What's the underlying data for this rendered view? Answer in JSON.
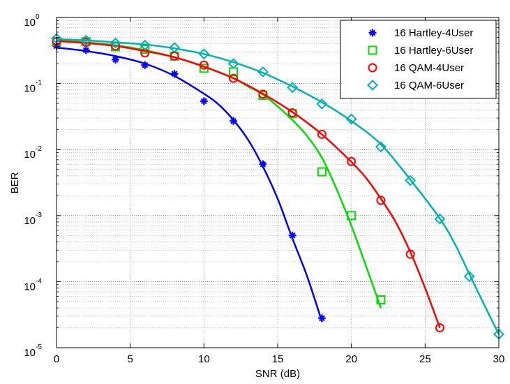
{
  "chart_data": {
    "type": "line",
    "xlabel": "SNR (dB)",
    "ylabel": "BER",
    "xlim": [
      0,
      30
    ],
    "ylim": [
      1e-05,
      1
    ],
    "yscale": "log",
    "grid": true,
    "legend_position": "top-right",
    "x_ticks": [
      0,
      5,
      10,
      15,
      20,
      25,
      30
    ],
    "y_ticks": [
      {
        "value": 1,
        "base": "10",
        "exp": "0"
      },
      {
        "value": 0.1,
        "base": "10",
        "exp": "-1"
      },
      {
        "value": 0.01,
        "base": "10",
        "exp": "-2"
      },
      {
        "value": 0.001,
        "base": "10",
        "exp": "-3"
      },
      {
        "value": 0.0001,
        "base": "10",
        "exp": "-4"
      },
      {
        "value": 1e-05,
        "base": "10",
        "exp": "-5"
      }
    ],
    "series": [
      {
        "name": "16 Hartley-4User",
        "color": "#0000ff",
        "marker": "star",
        "x": [
          0,
          2,
          4,
          6,
          8,
          10,
          12,
          14,
          16,
          18
        ],
        "y": [
          0.37,
          0.32,
          0.23,
          0.19,
          0.14,
          0.054,
          0.027,
          0.006,
          0.0005,
          2.8e-05
        ],
        "curve_x": [
          0,
          2,
          4,
          6,
          8,
          10,
          11,
          12,
          13,
          14,
          15,
          16,
          17,
          18
        ],
        "curve_y": [
          0.35,
          0.31,
          0.26,
          0.2,
          0.13,
          0.07,
          0.048,
          0.028,
          0.014,
          0.0055,
          0.0018,
          0.00045,
          0.00012,
          2.5e-05
        ]
      },
      {
        "name": "16 Hartley-6User",
        "color": "#00dd00",
        "marker": "square",
        "x": [
          0,
          2,
          4,
          6,
          8,
          10,
          12,
          14,
          16,
          18,
          20,
          22
        ],
        "y": [
          0.43,
          0.43,
          0.36,
          0.33,
          0.26,
          0.17,
          0.15,
          0.066,
          0.035,
          0.0046,
          0.001,
          5.3e-05
        ],
        "curve_x": [
          0,
          2,
          4,
          6,
          8,
          10,
          12,
          13,
          14,
          15,
          16,
          17,
          18,
          19,
          20,
          21,
          22
        ],
        "curve_y": [
          0.45,
          0.42,
          0.38,
          0.32,
          0.25,
          0.18,
          0.12,
          0.09,
          0.068,
          0.045,
          0.028,
          0.016,
          0.0075,
          0.0025,
          0.0007,
          0.00017,
          4e-05
        ]
      },
      {
        "name": "16 QAM-4User",
        "color": "#ff0000",
        "marker": "circle",
        "x": [
          0,
          2,
          4,
          6,
          8,
          10,
          12,
          14,
          16,
          18,
          20,
          22,
          24,
          26
        ],
        "y": [
          0.43,
          0.42,
          0.37,
          0.29,
          0.26,
          0.19,
          0.12,
          0.069,
          0.036,
          0.017,
          0.0066,
          0.0017,
          0.00026,
          2e-05
        ],
        "curve_x": [
          0,
          2,
          4,
          6,
          8,
          10,
          12,
          14,
          16,
          18,
          20,
          21,
          22,
          23,
          24,
          25,
          26
        ],
        "curve_y": [
          0.44,
          0.41,
          0.37,
          0.31,
          0.25,
          0.18,
          0.12,
          0.07,
          0.037,
          0.017,
          0.0065,
          0.0037,
          0.0018,
          0.0008,
          0.00028,
          8e-05,
          2e-05
        ]
      },
      {
        "name": "16 QAM-6User",
        "color": "#00b2b2",
        "marker": "diamond",
        "x": [
          0,
          2,
          4,
          6,
          8,
          10,
          12,
          14,
          16,
          18,
          20,
          22,
          24,
          26,
          28,
          30
        ],
        "y": [
          0.48,
          0.45,
          0.41,
          0.38,
          0.35,
          0.28,
          0.2,
          0.15,
          0.087,
          0.049,
          0.029,
          0.011,
          0.0034,
          0.00089,
          0.00012,
          1.6e-05
        ],
        "curve_x": [
          0,
          2,
          4,
          6,
          8,
          10,
          12,
          14,
          16,
          18,
          20,
          22,
          24,
          26,
          27,
          28,
          29,
          30
        ],
        "curve_y": [
          0.47,
          0.45,
          0.42,
          0.39,
          0.34,
          0.28,
          0.21,
          0.145,
          0.09,
          0.052,
          0.027,
          0.012,
          0.0035,
          0.0009,
          0.00038,
          0.00013,
          4.5e-05,
          1.6e-05
        ]
      }
    ]
  }
}
